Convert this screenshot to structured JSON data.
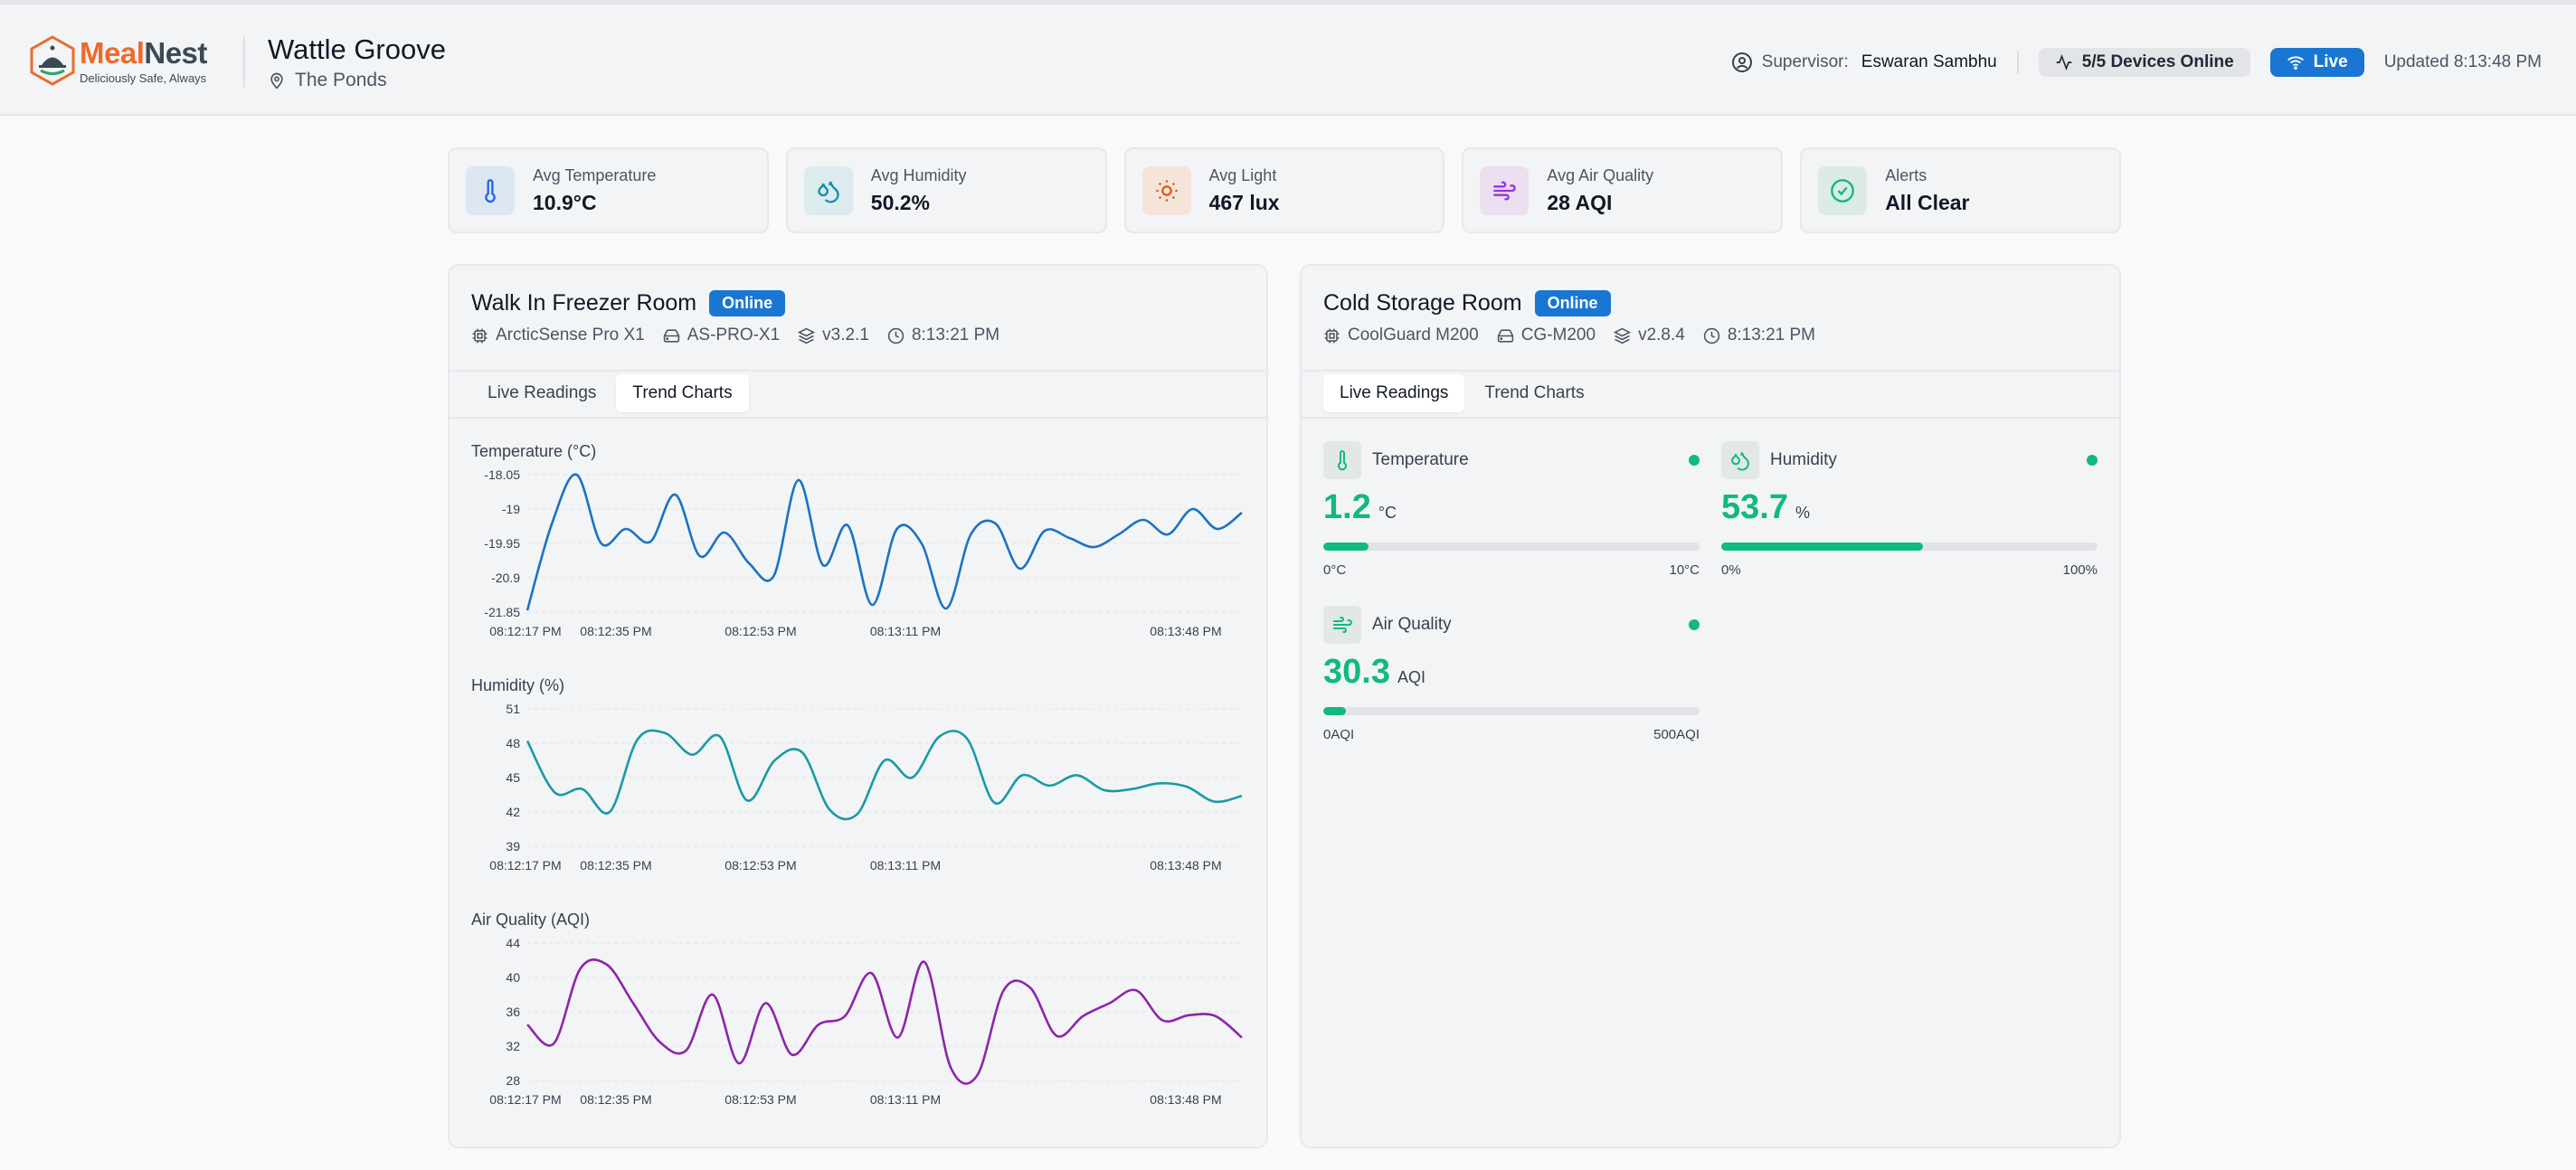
{
  "brand": {
    "name_part1": "Meal",
    "name_part2": "Nest",
    "tagline": "Deliciously Safe, Always",
    "accent_color": "#ee6a2c"
  },
  "header": {
    "site_name": "Wattle Groove",
    "location": "The Ponds",
    "supervisor_label": "Supervisor:",
    "supervisor_name": "Eswaran Sambhu",
    "devices_online": "5/5 Devices Online",
    "live_label": "Live",
    "updated": "Updated 8:13:48 PM"
  },
  "summary": [
    {
      "label": "Avg Temperature",
      "value": "10.9°C",
      "icon": "thermometer-icon",
      "color": "#2563eb"
    },
    {
      "label": "Avg Humidity",
      "value": "50.2%",
      "icon": "droplets-icon",
      "color": "#0891b2"
    },
    {
      "label": "Avg Light",
      "value": "467 lux",
      "icon": "sun-icon",
      "color": "#ea580c"
    },
    {
      "label": "Avg Air Quality",
      "value": "28 AQI",
      "icon": "wind-icon",
      "color": "#9333ea"
    },
    {
      "label": "Alerts",
      "value": "All Clear",
      "icon": "check-circle-icon",
      "color": "#10b981"
    }
  ],
  "rooms": [
    {
      "name": "Walk In Freezer Room",
      "status": "Online",
      "model": "ArcticSense Pro X1",
      "device_id": "AS-PRO-X1",
      "firmware": "v3.2.1",
      "time": "8:13:21 PM",
      "tabs": [
        "Live Readings",
        "Trend Charts"
      ],
      "active_tab": "Trend Charts"
    },
    {
      "name": "Cold Storage Room",
      "status": "Online",
      "model": "CoolGuard M200",
      "device_id": "CG-M200",
      "firmware": "v2.8.4",
      "time": "8:13:21 PM",
      "tabs": [
        "Live Readings",
        "Trend Charts"
      ],
      "active_tab": "Live Readings",
      "readings": [
        {
          "label": "Temperature",
          "value": "1.2",
          "unit": "°C",
          "min": "0°C",
          "max": "10°C",
          "fraction": 0.12,
          "icon": "thermometer-icon"
        },
        {
          "label": "Humidity",
          "value": "53.7",
          "unit": "%",
          "min": "0%",
          "max": "100%",
          "fraction": 0.537,
          "icon": "droplets-icon"
        },
        {
          "label": "Air Quality",
          "value": "30.3",
          "unit": "AQI",
          "min": "0AQI",
          "max": "500AQI",
          "fraction": 0.061,
          "icon": "wind-icon"
        }
      ],
      "status_color": "#10b981"
    }
  ],
  "chart_data": [
    {
      "type": "line",
      "title": "Temperature (°C)",
      "color": "#1a73c4",
      "ylim": [
        -21.85,
        -18.05
      ],
      "yticks": [
        "-18.05",
        "-19",
        "-19.95",
        "-20.9",
        "-21.85"
      ],
      "xticks": [
        "08:12:17 PM",
        "08:12:35 PM",
        "08:12:53 PM",
        "08:13:11 PM",
        "08:13:48 PM"
      ],
      "values": [
        -21.8,
        -19.4,
        -18.05,
        -19.95,
        -19.55,
        -19.9,
        -18.6,
        -20.3,
        -19.65,
        -20.5,
        -20.85,
        -18.2,
        -20.55,
        -19.45,
        -21.65,
        -19.55,
        -19.95,
        -21.75,
        -19.7,
        -19.4,
        -20.65,
        -19.6,
        -19.8,
        -20.05,
        -19.7,
        -19.3,
        -19.7,
        -19.0,
        -19.55,
        -19.1
      ],
      "xlabel": "",
      "ylabel": "",
      "grid": true
    },
    {
      "type": "line",
      "title": "Humidity (%)",
      "color": "#1a9aa6",
      "ylim": [
        39,
        51
      ],
      "yticks": [
        "51",
        "48",
        "45",
        "42",
        "39"
      ],
      "xticks": [
        "08:12:17 PM",
        "08:12:35 PM",
        "08:12:53 PM",
        "08:13:11 PM",
        "08:13:48 PM"
      ],
      "values": [
        48.2,
        43.7,
        44.0,
        42.0,
        48.3,
        48.9,
        47.0,
        48.6,
        43.0,
        46.5,
        47.2,
        42.2,
        41.8,
        46.5,
        45.0,
        48.6,
        48.4,
        42.8,
        45.2,
        44.3,
        45.2,
        43.9,
        44.0,
        44.5,
        44.2,
        42.9,
        43.4
      ],
      "xlabel": "",
      "ylabel": "",
      "grid": true
    },
    {
      "type": "line",
      "title": "Air Quality (AQI)",
      "color": "#8e24aa",
      "ylim": [
        28,
        44
      ],
      "yticks": [
        "44",
        "40",
        "36",
        "32",
        "28"
      ],
      "xticks": [
        "08:12:17 PM",
        "08:12:35 PM",
        "08:12:53 PM",
        "08:13:11 PM",
        "08:13:48 PM"
      ],
      "values": [
        34.5,
        32.3,
        41.0,
        41.5,
        37.0,
        32.5,
        31.5,
        38.0,
        30.0,
        37.0,
        31.0,
        34.5,
        35.5,
        40.5,
        33.0,
        41.8,
        29.5,
        28.6,
        38.5,
        38.8,
        33.2,
        35.5,
        37.0,
        38.5,
        35.0,
        35.6,
        35.5,
        33.0
      ],
      "xlabel": "",
      "ylabel": "",
      "grid": true
    }
  ]
}
